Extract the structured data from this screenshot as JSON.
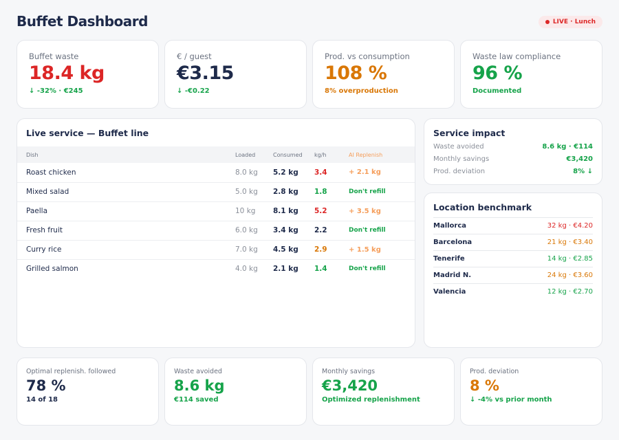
{
  "header": {
    "title": "Buffet Dashboard",
    "live_badge": "LIVE · Lunch"
  },
  "kpis": [
    {
      "label": "Buffet waste",
      "value": "18.4 kg",
      "sub": "↓ -32% · €245",
      "value_color": "red",
      "sub_color": "green"
    },
    {
      "label": "€ / guest",
      "value": "€3.15",
      "sub": "↓ -€0.22",
      "value_color": "navy",
      "sub_color": "green"
    },
    {
      "label": "Prod. vs consumption",
      "value": "108 %",
      "sub": "8% overproduction",
      "value_color": "orange",
      "sub_color": "orange"
    },
    {
      "label": "Waste law compliance",
      "value": "96 %",
      "sub": "Documented",
      "value_color": "green",
      "sub_color": "green"
    }
  ],
  "live_service": {
    "title": "Live service — Buffet line",
    "columns": [
      "Dish",
      "Loaded",
      "Consumed",
      "kg/h",
      "AI Replenish"
    ],
    "rows": [
      {
        "dish": "Roast chicken",
        "loaded": "8.0 kg",
        "consumed": "5.2 kg",
        "rate": "3.4",
        "rate_status": "red",
        "replenish": "+ 2.1 kg"
      },
      {
        "dish": "Mixed salad",
        "loaded": "5.0 kg",
        "consumed": "2.8 kg",
        "rate": "1.8",
        "rate_status": "green",
        "replenish": "Don't refill"
      },
      {
        "dish": "Paella",
        "loaded": "10 kg",
        "consumed": "8.1 kg",
        "rate": "5.2",
        "rate_status": "red",
        "replenish": "+ 3.5 kg"
      },
      {
        "dish": "Fresh fruit",
        "loaded": "6.0 kg",
        "consumed": "3.4 kg",
        "rate": "2.2",
        "rate_status": "navy",
        "replenish": "Don't refill"
      },
      {
        "dish": "Curry rice",
        "loaded": "7.0 kg",
        "consumed": "4.5 kg",
        "rate": "2.9",
        "rate_status": "orange",
        "replenish": "+ 1.5 kg"
      },
      {
        "dish": "Grilled salmon",
        "loaded": "4.0 kg",
        "consumed": "2.1 kg",
        "rate": "1.4",
        "rate_status": "green",
        "replenish": "Don't refill"
      }
    ]
  },
  "service_impact": {
    "title": "Service impact",
    "items": [
      {
        "label": "Waste avoided",
        "value": "8.6 kg · €114"
      },
      {
        "label": "Monthly savings",
        "value": "€3,420"
      },
      {
        "label": "Prod. deviation",
        "value": "8% ↓"
      }
    ]
  },
  "benchmark": {
    "title": "Location benchmark",
    "items": [
      {
        "location": "Mallorca",
        "value": "32 kg · €4.20",
        "status": "red"
      },
      {
        "location": "Barcelona",
        "value": "21 kg · €3.40",
        "status": "orange"
      },
      {
        "location": "Tenerife",
        "value": "14 kg · €2.85",
        "status": "green"
      },
      {
        "location": "Madrid N.",
        "value": "24 kg · €3.60",
        "status": "orange"
      },
      {
        "location": "Valencia",
        "value": "12 kg · €2.70",
        "status": "green"
      }
    ]
  },
  "bottom": [
    {
      "label": "Optimal replenish. followed",
      "value": "78 %",
      "sub": "14 of 18",
      "value_color": "navy",
      "sub_color": "navy"
    },
    {
      "label": "Waste avoided",
      "value": "8.6 kg",
      "sub": "€114 saved",
      "value_color": "green",
      "sub_color": "green"
    },
    {
      "label": "Monthly savings",
      "value": "€3,420",
      "sub": "Optimized replenishment",
      "value_color": "green",
      "sub_color": "green"
    },
    {
      "label": "Prod. deviation",
      "value": "8 %",
      "sub": "↓ -4% vs prior month",
      "value_color": "orange",
      "sub_color": "green"
    }
  ],
  "colors": {
    "red": "#dc2626",
    "orange": "#d97706",
    "green": "#16a34a",
    "navy": "#1e2a4a",
    "ai_replenish": "#f59e5b"
  }
}
